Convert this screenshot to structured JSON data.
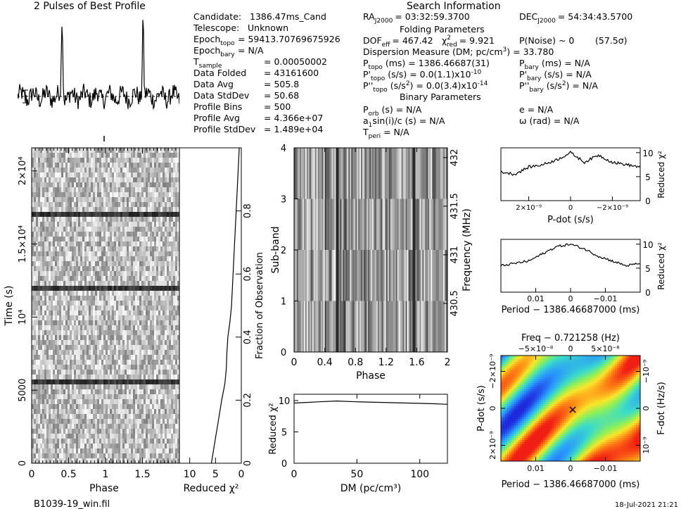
{
  "pulse_title": "2 Pulses of Best Profile",
  "search_title": "Search Information",
  "info_left": [
    {
      "label": "Candidate:",
      "sub": "",
      "value": "1386.47ms_Cand"
    },
    {
      "label": "Telescope:",
      "sub": "",
      "value": "Unknown"
    },
    {
      "label": "Epoch",
      "sub": "topo",
      "value": "= 59413.70769675926"
    },
    {
      "label": "Epoch",
      "sub": "bary",
      "value": "= N/A"
    },
    {
      "label": "T",
      "sub": "sample",
      "value": "0.00050002"
    },
    {
      "label": "Data Folded",
      "sub": "",
      "value": "43161600"
    },
    {
      "label": "Data Avg",
      "sub": "",
      "value": "505.8"
    },
    {
      "label": "Data StdDev",
      "sub": "",
      "value": "50.68"
    },
    {
      "label": "Profile Bins",
      "sub": "",
      "value": "500"
    },
    {
      "label": "Profile Avg",
      "sub": "",
      "value": "4.366e+07"
    },
    {
      "label": "Profile StdDev",
      "sub": "",
      "value": "1.489e+04"
    }
  ],
  "info_right": {
    "ra": "RA",
    "ra_sub": "J2000",
    "ra_val": "= 03:32:59.3700",
    "dec": "DEC",
    "dec_sub": "J2000",
    "dec_val": "= 54:34:43.5700",
    "folding_header": "Folding Parameters",
    "dof": "DOF",
    "dof_sub": "eff",
    "dof_val": "= 467.42",
    "chi": "χ",
    "chi_sup": "2",
    "chi_sub": "red",
    "chi_val": "= 9.921",
    "pnoise": "P(Noise) ~ 0",
    "sigma": "(57.5σ)",
    "dm_line": "Dispersion Measure (DM; pc/cm",
    "dm_sup": "3",
    "dm_val": ") = 33.780",
    "ptopo": "P",
    "ptopo_sub": "topo",
    "ptopo_val": "(ms)    =   1386.46687(31)",
    "pbary": "P",
    "pbary_sub": "bary",
    "pbary_val": "(ms) = N/A",
    "pdtopo": "P'",
    "pdtopo_sub": "topo",
    "pdtopo_val": "(s/s)   = 0.0(1.1)x10",
    "pdtopo_exp": "-10",
    "pdbary": "P'",
    "pdbary_sub": "bary",
    "pdbary_val": "(s/s) = N/A",
    "pddtopo": "P''",
    "pddtopo_sub": "topo",
    "pddtopo_val": "(s/s",
    "pddtopo_sup": "2",
    "pddtopo_val2": ")  = 0.0(3.4)x10",
    "pddtopo_exp": "-14",
    "pddbary": "P''",
    "pddbary_sub": "bary",
    "pddbary_val": "(s/s",
    "pddbary_sup": "2",
    "pddbary_val2": ") = N/A",
    "binary_header": "Binary Parameters",
    "porb": "P",
    "porb_sub": "orb",
    "porb_val": "(s) = N/A",
    "e_val": "e = N/A",
    "asini": "a",
    "asini_sub": "1",
    "asini_val": "sin(i)/c (s) = N/A",
    "omega_val": "ω (rad) = N/A",
    "tperi": "T",
    "tperi_sub": "peri",
    "tperi_val": "= N/A"
  },
  "footer": {
    "filename": "B1039-19_win.fil",
    "date": "18-Jul-2021 21:21"
  },
  "chart_data": [
    {
      "type": "line",
      "title": "2 Pulses of Best Profile",
      "x": [
        0.0,
        0.1,
        0.2,
        0.3,
        0.4,
        0.5,
        0.55,
        0.6,
        0.7,
        0.8,
        0.9,
        1.0,
        1.1,
        1.2,
        1.3,
        1.4,
        1.5,
        1.55,
        1.6,
        1.7,
        1.8,
        1.9,
        2.0
      ],
      "values": [
        0.1,
        0.0,
        -0.05,
        0.1,
        0.05,
        0.0,
        1.0,
        0.05,
        -0.1,
        0.1,
        0.0,
        0.1,
        0.0,
        -0.05,
        0.1,
        0.05,
        0.0,
        1.0,
        0.05,
        -0.1,
        0.1,
        0.0,
        0.1
      ]
    },
    {
      "type": "heatmap",
      "xlabel": "Phase",
      "ylabel": "Time (s)",
      "xticks": [
        "0",
        "0.5",
        "1",
        "1.5"
      ],
      "yticks": [
        "0",
        "5000",
        "10⁴",
        "1.5×10⁴",
        "2×10⁴"
      ],
      "xlim": [
        0,
        2
      ],
      "ylim": [
        0,
        21580
      ]
    },
    {
      "type": "line",
      "xlabel": "Reduced χ²",
      "ylabel": "Fraction of Observation",
      "xticks": [
        "10",
        "5",
        "0"
      ],
      "yticks": [
        "0",
        "0.2",
        "0.4",
        "0.6",
        "0.8"
      ],
      "x": [
        5.8,
        5.3,
        4.8,
        4.3,
        3.8,
        3.2,
        2.9,
        2.8,
        2.6,
        2.2,
        1.9,
        1.6,
        1.3,
        1.0,
        0.7,
        0.4
      ],
      "y": [
        0.0,
        0.05,
        0.1,
        0.15,
        0.2,
        0.25,
        0.3,
        0.35,
        0.4,
        0.45,
        0.5,
        0.6,
        0.7,
        0.8,
        0.9,
        1.0
      ]
    },
    {
      "type": "heatmap",
      "xlabel": "Phase",
      "ylabel": "Sub-band",
      "right_label": "Frequency (MHz)",
      "xticks": [
        "0",
        "0.4",
        "0.8",
        "1.2",
        "1.6",
        "2"
      ],
      "yticks": [
        "0",
        "1",
        "2",
        "3",
        "4"
      ],
      "right_ticks": [
        "430.5",
        "431",
        "431.5",
        "432"
      ],
      "xlim": [
        0,
        2
      ],
      "ylim": [
        0,
        4
      ]
    },
    {
      "type": "line",
      "xlabel": "DM (pc/cm³)",
      "ylabel": "Reduced χ²",
      "xticks": [
        "0",
        "50",
        "100"
      ],
      "yticks": [
        "0",
        "5",
        "10"
      ],
      "xlim": [
        0,
        122
      ],
      "ylim": [
        0,
        11
      ],
      "x": [
        0,
        10,
        20,
        33.78,
        50,
        70,
        90,
        110,
        122
      ],
      "y": [
        9.6,
        9.7,
        9.8,
        9.92,
        9.8,
        9.7,
        9.6,
        9.5,
        9.4
      ]
    },
    {
      "type": "line",
      "xlabel": "P-dot (s/s)",
      "ylabel": "Reduced χ²",
      "xticks": [
        "2×10⁻⁹",
        "0",
        "−2×10⁻⁹"
      ],
      "yticks": [
        "0",
        "5",
        "10"
      ],
      "ylim": [
        0,
        11
      ],
      "x": [
        0,
        0.1,
        0.2,
        0.3,
        0.4,
        0.5,
        0.6,
        0.7,
        0.8,
        0.9,
        1.0
      ],
      "y": [
        6.0,
        5.5,
        7.0,
        7.5,
        8.5,
        10.0,
        8.0,
        9.5,
        8.0,
        7.5,
        7.0
      ]
    },
    {
      "type": "line",
      "xlabel": "Period − 1386.46687000 (ms)",
      "ylabel": "Reduced χ²",
      "xticks": [
        "0.01",
        "0",
        "−0.01"
      ],
      "yticks": [
        "0",
        "5",
        "10"
      ],
      "ylim": [
        0,
        11
      ],
      "x": [
        0,
        0.1,
        0.2,
        0.3,
        0.4,
        0.5,
        0.6,
        0.7,
        0.8,
        0.9,
        1.0
      ],
      "y": [
        5.5,
        6.0,
        6.5,
        8.0,
        9.5,
        10.0,
        9.0,
        7.5,
        6.5,
        5.5,
        6.0
      ]
    },
    {
      "type": "heatmap",
      "title": "Freq − 0.721258 (Hz)",
      "xlabel": "Period − 1386.46687000 (ms)",
      "ylabel": "P-dot (s/s)",
      "right_label": "F-dot (Hz/s)",
      "top_ticks": [
        "−5×10⁻⁸",
        "0",
        "5×10⁻⁸"
      ],
      "xticks": [
        "0.01",
        "0",
        "−0.01"
      ],
      "yticks": [
        "2×10⁻⁹",
        "0",
        "−2×10⁻⁹"
      ],
      "right_ticks": [
        "−10⁻⁹",
        "0",
        "10⁻⁹"
      ]
    }
  ]
}
